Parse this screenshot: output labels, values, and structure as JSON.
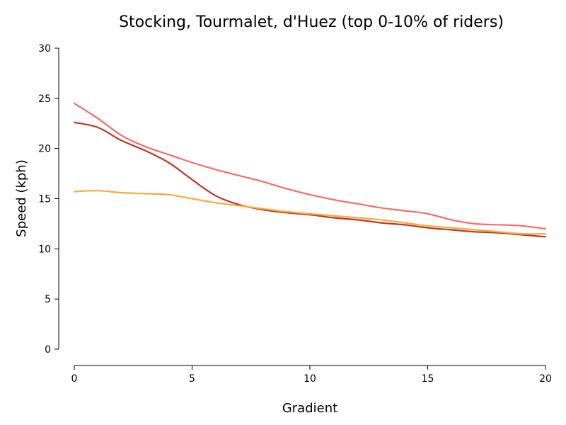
{
  "chart_data": {
    "type": "line",
    "title": "Stocking, Tourmalet, d'Huez (top 0-10% of riders)",
    "xlabel": "Gradient",
    "ylabel": "Speed (kph)",
    "xlim": [
      0,
      20
    ],
    "ylim": [
      0,
      30
    ],
    "xticks": [
      0,
      5,
      10,
      15,
      20
    ],
    "yticks": [
      0,
      5,
      10,
      15,
      20,
      25,
      30
    ],
    "grid": false,
    "x": [
      0,
      1,
      2,
      3,
      4,
      5,
      6,
      7,
      8,
      9,
      10,
      11,
      12,
      13,
      14,
      15,
      16,
      17,
      18,
      19,
      20
    ],
    "series": [
      {
        "color": "#f46d6a",
        "values": [
          24.5,
          23.0,
          21.3,
          20.2,
          19.4,
          18.6,
          17.9,
          17.3,
          16.7,
          16.0,
          15.4,
          14.9,
          14.5,
          14.1,
          13.8,
          13.5,
          12.9,
          12.5,
          12.4,
          12.3,
          12.0
        ]
      },
      {
        "color": "#b83a26",
        "values": [
          22.6,
          22.1,
          20.8,
          19.8,
          18.6,
          16.9,
          15.3,
          14.4,
          13.9,
          13.6,
          13.4,
          13.1,
          12.9,
          12.6,
          12.4,
          12.1,
          11.9,
          11.7,
          11.6,
          11.4,
          11.2
        ]
      },
      {
        "color": "#f9a93c",
        "values": [
          15.7,
          15.8,
          15.6,
          15.5,
          15.4,
          15.0,
          14.6,
          14.3,
          14.0,
          13.7,
          13.5,
          13.3,
          13.1,
          12.9,
          12.6,
          12.3,
          12.1,
          11.9,
          11.7,
          11.5,
          11.5
        ]
      }
    ]
  }
}
